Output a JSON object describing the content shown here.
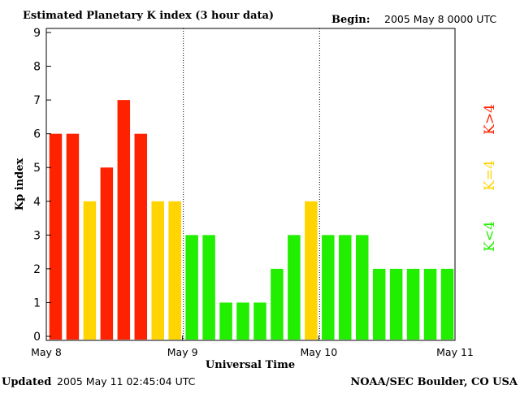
{
  "header": {
    "title": "Estimated Planetary K index (3 hour data)",
    "begin_label": "Begin:",
    "begin_value": "2005 May 8 0000 UTC"
  },
  "footer": {
    "updated_label": "Updated",
    "updated_value": "2005 May 11 02:45:04 UTC",
    "source": "NOAA/SEC Boulder, CO USA"
  },
  "legend": {
    "high": "K>4",
    "equal": "K=4",
    "low": "K<4"
  },
  "colors": {
    "high": "#ff2200",
    "equal": "#ffd400",
    "low": "#22ee00",
    "axis": "#000000"
  },
  "chart_data": {
    "type": "bar",
    "xlabel": "Universal Time",
    "ylabel": "Kp index",
    "ylim": [
      0,
      9
    ],
    "yticks": [
      "0",
      "1",
      "2",
      "3",
      "4",
      "5",
      "6",
      "7",
      "8",
      "9"
    ],
    "xticks": [
      "May 8",
      "May 9",
      "May 10",
      "May 11"
    ],
    "day_dividers": [
      "May 9",
      "May 10"
    ],
    "values": [
      6,
      6,
      4,
      5,
      7,
      6,
      4,
      4,
      3,
      3,
      1,
      1,
      1,
      2,
      3,
      4,
      3,
      3,
      3,
      2,
      2,
      2,
      2,
      2
    ]
  }
}
